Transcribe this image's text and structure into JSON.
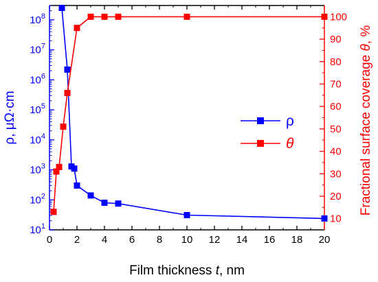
{
  "chart_data": {
    "type": "line",
    "xlabel": {
      "prefix": "Film thickness ",
      "var": "t",
      "suffix": ", nm"
    },
    "xlim": [
      0,
      20
    ],
    "xticks": [
      0,
      2,
      4,
      6,
      8,
      10,
      12,
      14,
      16,
      18,
      20
    ],
    "left_axis": {
      "label": "ρ, μΩ·cm",
      "scale": "log",
      "ylim": [
        10,
        300000000
      ],
      "ticks": [
        {
          "value": 10,
          "base": "10",
          "exp": "1"
        },
        {
          "value": 100,
          "base": "10",
          "exp": "2"
        },
        {
          "value": 1000,
          "base": "10",
          "exp": "3"
        },
        {
          "value": 10000,
          "base": "10",
          "exp": "4"
        },
        {
          "value": 100000,
          "base": "10",
          "exp": "5"
        },
        {
          "value": 1000000,
          "base": "10",
          "exp": "6"
        },
        {
          "value": 10000000,
          "base": "10",
          "exp": "7"
        },
        {
          "value": 100000000,
          "base": "10",
          "exp": "8"
        }
      ],
      "color": "#0000ff"
    },
    "right_axis": {
      "label": {
        "prefix": "Fractional surface coverage ",
        "var": "θ",
        "suffix": ", %"
      },
      "scale": "linear",
      "ylim": [
        5,
        105
      ],
      "ticks": [
        10,
        20,
        30,
        40,
        50,
        60,
        70,
        80,
        90,
        100
      ],
      "color": "#ff0000"
    },
    "series": [
      {
        "name": "ρ",
        "axis": "left",
        "color": "#0000ff",
        "marker": "square",
        "x": [
          0.9,
          1.3,
          1.6,
          1.8,
          2.0,
          3.0,
          4.0,
          5.0,
          10.0,
          20.0
        ],
        "y": [
          250000000,
          2200000,
          1300,
          1100,
          300,
          140,
          80,
          75,
          31,
          24
        ]
      },
      {
        "name": "θ",
        "axis": "right",
        "color": "#ff0000",
        "marker": "square",
        "x": [
          0.3,
          0.5,
          0.7,
          1.0,
          1.3,
          2.0,
          3.0,
          4.0,
          5.0,
          10.0,
          20.0
        ],
        "y": [
          13,
          31,
          33,
          51,
          66,
          95,
          100,
          100,
          100,
          100,
          100
        ]
      }
    ],
    "legend": {
      "placement": "center-right",
      "entries": [
        {
          "label": "ρ",
          "italic": false,
          "color": "#0000ff"
        },
        {
          "label": "θ",
          "italic": true,
          "color": "#ff0000"
        }
      ]
    },
    "grid": false
  }
}
